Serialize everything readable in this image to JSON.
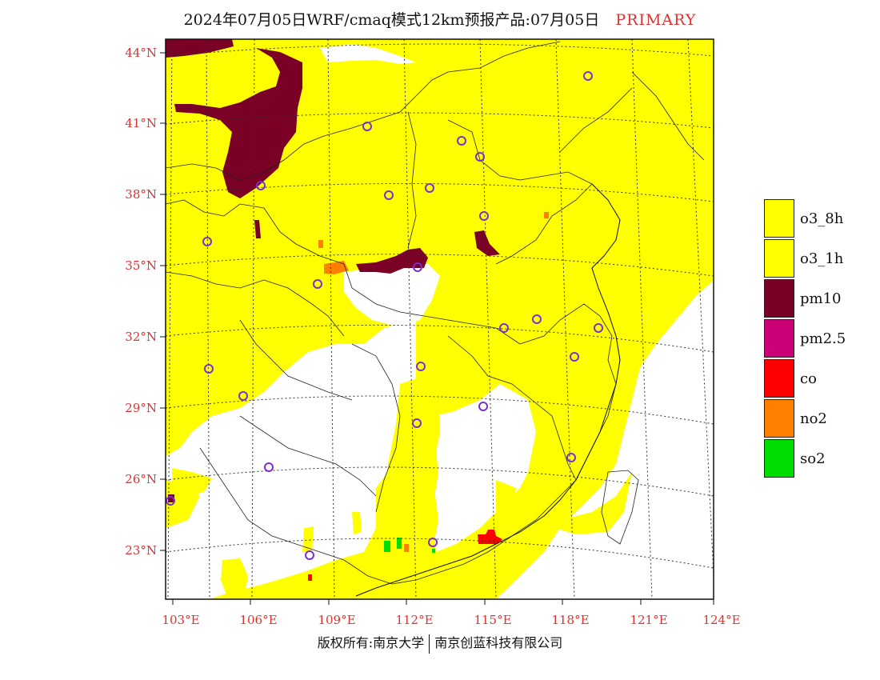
{
  "header": {
    "title": "2024年07月05日WRF/cmaq模式12km预报产品:07月05日",
    "tag": "PRIMARY"
  },
  "axes": {
    "lat_labels": [
      "44°N",
      "41°N",
      "38°N",
      "35°N",
      "32°N",
      "29°N",
      "26°N",
      "23°N"
    ],
    "lon_labels": [
      "103°E",
      "106°E",
      "109°E",
      "112°E",
      "115°E",
      "118°E",
      "121°E",
      "124°E"
    ]
  },
  "legend": {
    "items": [
      {
        "label": "o3_8h",
        "color": "#ffff00"
      },
      {
        "label": "o3_1h",
        "color": "#ffff00"
      },
      {
        "label": "pm10",
        "color": "#7a0026"
      },
      {
        "label": "pm2.5",
        "color": "#cc0077"
      },
      {
        "label": "co",
        "color": "#ff0000"
      },
      {
        "label": "no2",
        "color": "#ff8000"
      },
      {
        "label": "so2",
        "color": "#00dd00"
      }
    ]
  },
  "colors": {
    "o3": "#ffff00",
    "pm10": "#7a0026",
    "co": "#ff0000",
    "no2": "#ff8000",
    "so2": "#00dd00",
    "city_marker": "#7b2fd0",
    "axis_text": "#e03030"
  },
  "footer": {
    "copyright_left": "版权所有:南京大学",
    "copyright_right": "南京创蓝科技有限公司"
  }
}
